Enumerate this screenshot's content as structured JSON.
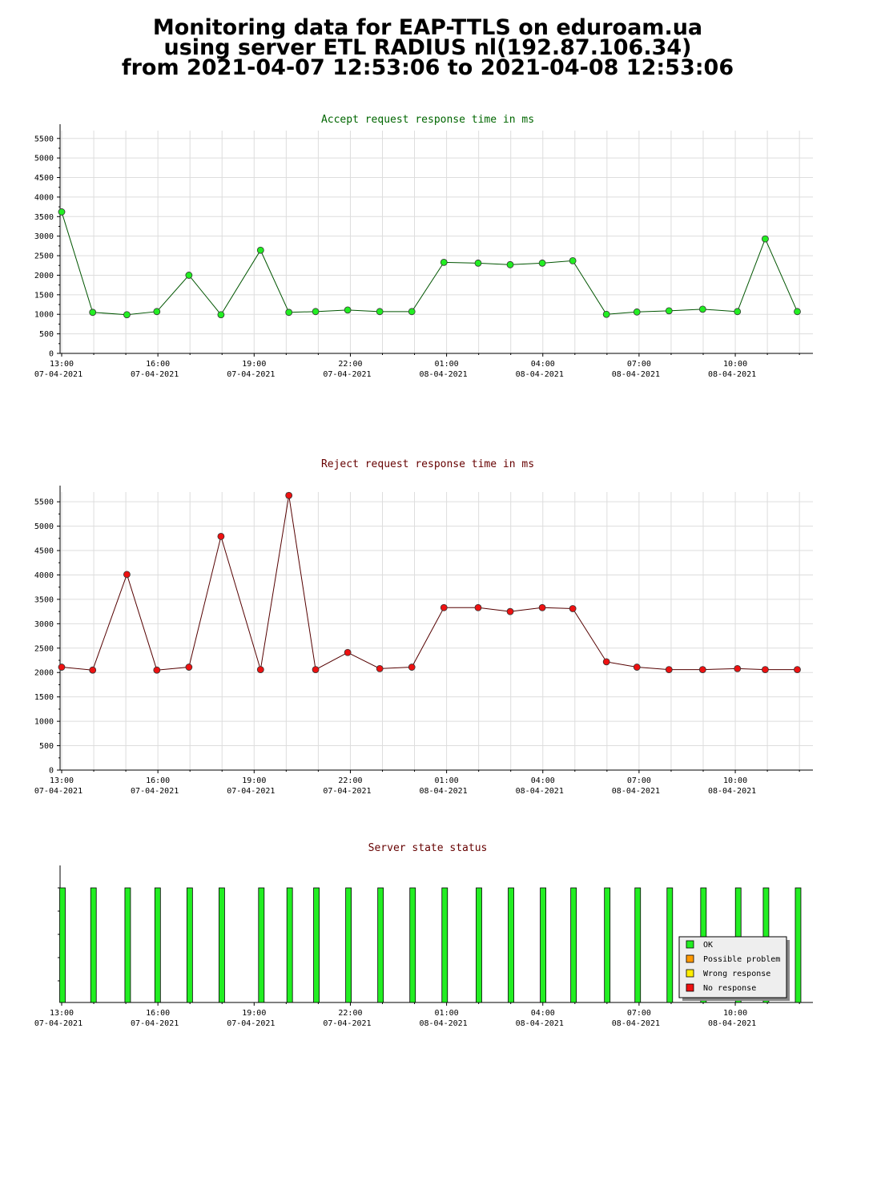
{
  "header": {
    "line1": "Monitoring data for EAP-TTLS on eduroam.ua",
    "line2": "using server ETL RADIUS nl(192.87.106.34)",
    "line3": "from 2021-04-07 12:53:06 to 2021-04-08 12:53:06"
  },
  "colors": {
    "accept": "#22ee22",
    "accept_line": "#005500",
    "reject": "#ee1111",
    "reject_line": "#550000",
    "accept_title": "#006600",
    "reject_title": "#660000",
    "status_title": "#660000",
    "grid": "#dddddd",
    "ok": "#22ee22",
    "possible_problem": "#ff9900",
    "wrong_response": "#ffee00",
    "no_response": "#ee1111"
  },
  "chart_data": [
    {
      "type": "line",
      "title": "Accept request response time in ms",
      "x": [
        "2021-04-07 13:00",
        "2021-04-07 13:58",
        "2021-04-07 15:02",
        "2021-04-07 15:58",
        "2021-04-07 16:58",
        "2021-04-07 17:58",
        "2021-04-07 19:12",
        "2021-04-07 20:05",
        "2021-04-07 20:55",
        "2021-04-07 21:55",
        "2021-04-07 22:55",
        "2021-04-07 23:55",
        "2021-04-08 00:55",
        "2021-04-08 01:59",
        "2021-04-08 02:59",
        "2021-04-08 03:59",
        "2021-04-08 04:56",
        "2021-04-08 05:59",
        "2021-04-08 06:56",
        "2021-04-08 07:56",
        "2021-04-08 08:59",
        "2021-04-08 10:04",
        "2021-04-08 10:56",
        "2021-04-08 11:56"
      ],
      "values": [
        3620,
        1050,
        990,
        1070,
        2000,
        990,
        2640,
        1050,
        1070,
        1110,
        1070,
        1070,
        2330,
        2310,
        2270,
        2310,
        2370,
        1000,
        1060,
        1090,
        1130,
        1070,
        2930,
        1070
      ],
      "ylim": [
        0,
        5700
      ],
      "yticks": [
        0,
        500,
        1000,
        1500,
        2000,
        2500,
        3000,
        3500,
        4000,
        4500,
        5000,
        5500
      ],
      "xticks": [
        {
          "time": "13:00",
          "date": "07-04-2021"
        },
        {
          "time": "16:00",
          "date": "07-04-2021"
        },
        {
          "time": "19:00",
          "date": "07-04-2021"
        },
        {
          "time": "22:00",
          "date": "07-04-2021"
        },
        {
          "time": "01:00",
          "date": "08-04-2021"
        },
        {
          "time": "04:00",
          "date": "08-04-2021"
        },
        {
          "time": "07:00",
          "date": "08-04-2021"
        },
        {
          "time": "10:00",
          "date": "08-04-2021"
        }
      ],
      "grid": true
    },
    {
      "type": "line",
      "title": "Reject request response time in ms",
      "x": [
        "2021-04-07 13:00",
        "2021-04-07 13:58",
        "2021-04-07 15:02",
        "2021-04-07 15:58",
        "2021-04-07 16:58",
        "2021-04-07 17:58",
        "2021-04-07 19:12",
        "2021-04-07 20:05",
        "2021-04-07 20:55",
        "2021-04-07 21:55",
        "2021-04-07 22:55",
        "2021-04-07 23:55",
        "2021-04-08 00:55",
        "2021-04-08 01:59",
        "2021-04-08 02:59",
        "2021-04-08 03:59",
        "2021-04-08 04:56",
        "2021-04-08 05:59",
        "2021-04-08 06:56",
        "2021-04-08 07:56",
        "2021-04-08 08:59",
        "2021-04-08 10:04",
        "2021-04-08 10:56",
        "2021-04-08 11:56"
      ],
      "values": [
        2110,
        2050,
        4010,
        2050,
        2110,
        4790,
        2060,
        5630,
        2060,
        2410,
        2080,
        2110,
        3330,
        3330,
        3250,
        3330,
        3310,
        2220,
        2110,
        2060,
        2060,
        2080,
        2060,
        2060
      ],
      "ylim": [
        0,
        5700
      ],
      "yticks": [
        0,
        500,
        1000,
        1500,
        2000,
        2500,
        3000,
        3500,
        4000,
        4500,
        5000,
        5500
      ],
      "xticks": [
        {
          "time": "13:00",
          "date": "07-04-2021"
        },
        {
          "time": "16:00",
          "date": "07-04-2021"
        },
        {
          "time": "19:00",
          "date": "07-04-2021"
        },
        {
          "time": "22:00",
          "date": "07-04-2021"
        },
        {
          "time": "01:00",
          "date": "08-04-2021"
        },
        {
          "time": "04:00",
          "date": "08-04-2021"
        },
        {
          "time": "07:00",
          "date": "08-04-2021"
        },
        {
          "time": "10:00",
          "date": "08-04-2021"
        }
      ],
      "grid": true
    },
    {
      "type": "bar",
      "title": "Server state status",
      "x": [
        "2021-04-07 13:00",
        "2021-04-07 13:58",
        "2021-04-07 15:02",
        "2021-04-07 15:58",
        "2021-04-07 16:58",
        "2021-04-07 17:58",
        "2021-04-07 19:12",
        "2021-04-07 20:05",
        "2021-04-07 20:55",
        "2021-04-07 21:55",
        "2021-04-07 22:55",
        "2021-04-07 23:55",
        "2021-04-08 00:55",
        "2021-04-08 01:59",
        "2021-04-08 02:59",
        "2021-04-08 03:59",
        "2021-04-08 04:56",
        "2021-04-08 05:59",
        "2021-04-08 06:56",
        "2021-04-08 07:56",
        "2021-04-08 08:59",
        "2021-04-08 10:04",
        "2021-04-08 10:56",
        "2021-04-08 11:56"
      ],
      "states": [
        "OK",
        "OK",
        "OK",
        "OK",
        "OK",
        "OK",
        "OK",
        "OK",
        "OK",
        "OK",
        "OK",
        "OK",
        "OK",
        "OK",
        "OK",
        "OK",
        "OK",
        "OK",
        "OK",
        "OK",
        "OK",
        "OK",
        "OK",
        "OK"
      ],
      "legend": [
        {
          "label": "OK",
          "color_key": "ok"
        },
        {
          "label": "Possible problem",
          "color_key": "possible_problem"
        },
        {
          "label": "Wrong response",
          "color_key": "wrong_response"
        },
        {
          "label": "No response",
          "color_key": "no_response"
        }
      ],
      "legend_position": "bottom-right",
      "xticks": [
        {
          "time": "13:00",
          "date": "07-04-2021"
        },
        {
          "time": "16:00",
          "date": "07-04-2021"
        },
        {
          "time": "19:00",
          "date": "07-04-2021"
        },
        {
          "time": "22:00",
          "date": "07-04-2021"
        },
        {
          "time": "01:00",
          "date": "08-04-2021"
        },
        {
          "time": "04:00",
          "date": "08-04-2021"
        },
        {
          "time": "07:00",
          "date": "08-04-2021"
        },
        {
          "time": "10:00",
          "date": "08-04-2021"
        }
      ]
    }
  ]
}
